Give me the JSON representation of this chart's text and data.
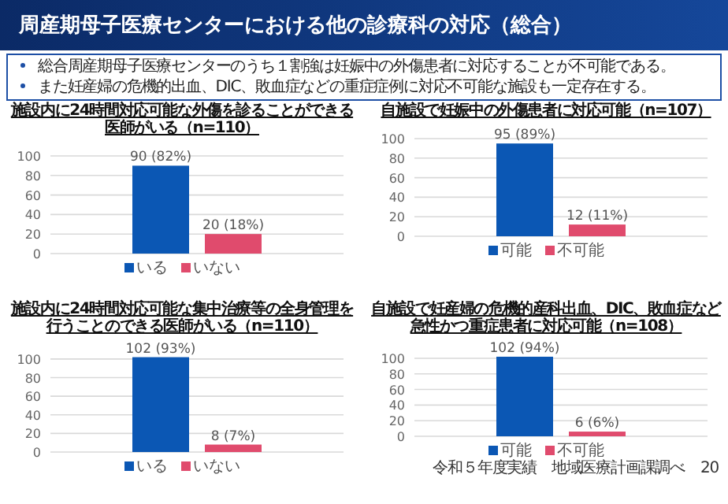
{
  "chart_data": [
    {
      "type": "other",
      "title": "周産期母子医療センターにおける他の診療科の対応（総合）",
      "annotations": [
        "総合周産期母子医療センターのうち１割強は妊娠中の外傷患者に対応することが不可能である。",
        "また妊産婦の危機的出血、DIC、敗血症などの重症症例に対応不可能な施設も一定存在する。"
      ]
    },
    {
      "type": "bar",
      "title": "施設内に24時間対応可能な外傷を診ることができる医師がいる（n=110）",
      "categories": [
        null
      ],
      "ylim": [
        0,
        100
      ],
      "yticks": [
        0,
        20,
        40,
        60,
        80,
        100
      ],
      "grid": "y",
      "legend": "bottom",
      "series": [
        {
          "name": "いる",
          "color": "#0b57b4",
          "values": [
            90
          ],
          "value_labels": [
            "90 (82%)"
          ]
        },
        {
          "name": "いない",
          "color": "#e04b6d",
          "values": [
            20
          ],
          "value_labels": [
            "20 (18%)"
          ]
        }
      ]
    },
    {
      "type": "bar",
      "title": "自施設で妊娠中の外傷患者に対応可能（n=107）",
      "categories": [
        null
      ],
      "ylim": [
        0,
        100
      ],
      "yticks": [
        0,
        20,
        40,
        60,
        80,
        100
      ],
      "grid": "y",
      "legend": "bottom",
      "series": [
        {
          "name": "可能",
          "color": "#0b57b4",
          "values": [
            95
          ],
          "value_labels": [
            "95 (89%)"
          ]
        },
        {
          "name": "不可能",
          "color": "#e04b6d",
          "values": [
            12
          ],
          "value_labels": [
            "12 (11%)"
          ]
        }
      ]
    },
    {
      "type": "bar",
      "title": "施設内に24時間対応可能な集中治療等の全身管理を行うことのできる医師がいる（n=110）",
      "categories": [
        null
      ],
      "ylim": [
        0,
        105
      ],
      "yticks": [
        0,
        20,
        40,
        60,
        80,
        100
      ],
      "grid": "y",
      "legend": "bottom",
      "series": [
        {
          "name": "いる",
          "color": "#0b57b4",
          "values": [
            102
          ],
          "value_labels": [
            "102 (93%)"
          ]
        },
        {
          "name": "いない",
          "color": "#e04b6d",
          "values": [
            8
          ],
          "value_labels": [
            "8 (7%)"
          ]
        }
      ]
    },
    {
      "type": "bar",
      "title": "自施設で妊産婦の危機的産科出血、DIC、敗血症など急性かつ重症患者に対応可能（n=108）",
      "categories": [
        null
      ],
      "ylim": [
        0,
        105
      ],
      "yticks": [
        0,
        20,
        40,
        60,
        80,
        100
      ],
      "grid": "y",
      "legend": "bottom",
      "annotations": [
        "令和５年度実績　地域医療計画課調べ",
        "20"
      ],
      "series": [
        {
          "name": "可能",
          "color": "#0b57b4",
          "values": [
            102
          ],
          "value_labels": [
            "102 (94%)"
          ]
        },
        {
          "name": "不可能",
          "color": "#e04b6d",
          "values": [
            6
          ],
          "value_labels": [
            "6 (6%)"
          ]
        }
      ]
    }
  ]
}
